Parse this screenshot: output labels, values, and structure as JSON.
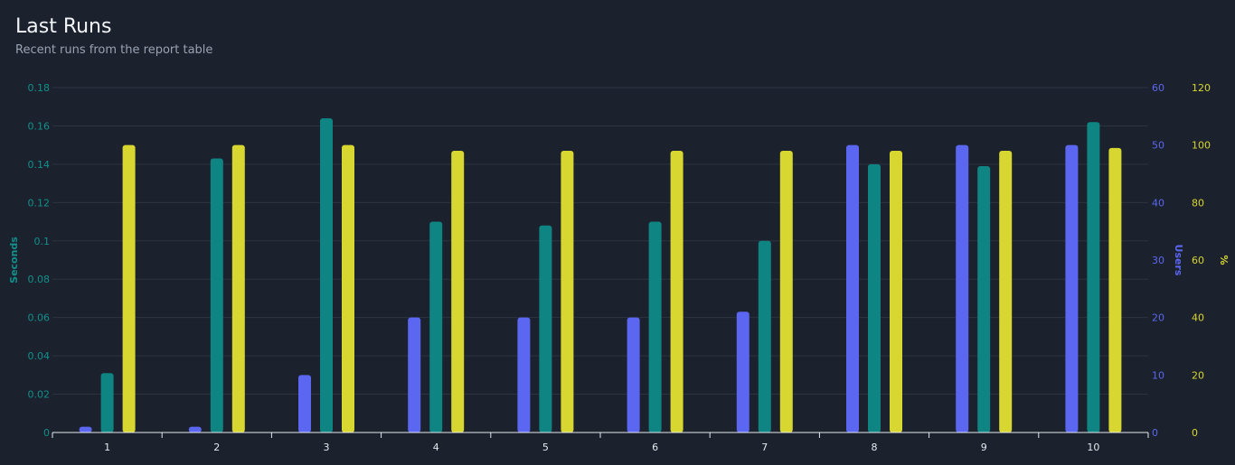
{
  "header": {
    "title": "Last Runs",
    "subtitle": "Recent runs from the report table"
  },
  "chart_data": {
    "type": "bar",
    "categories": [
      "1",
      "2",
      "3",
      "4",
      "5",
      "6",
      "7",
      "8",
      "9",
      "10"
    ],
    "series": [
      {
        "name": "Users",
        "axis": "users",
        "color": "#5b67f0",
        "values": [
          1,
          1,
          10,
          20,
          20,
          20,
          21,
          50,
          50,
          50
        ]
      },
      {
        "name": "Seconds",
        "axis": "seconds",
        "color": "#0e8583",
        "values": [
          0.031,
          0.143,
          0.164,
          0.11,
          0.108,
          0.11,
          0.1,
          0.14,
          0.139,
          0.162
        ]
      },
      {
        "name": "%",
        "axis": "percent",
        "color": "#d8d630",
        "values": [
          100,
          100,
          100,
          98,
          98,
          98,
          98,
          98,
          98,
          99
        ]
      }
    ],
    "axes": {
      "seconds": {
        "label": "Seconds",
        "color": "#11908c",
        "min": 0,
        "max": 0.18,
        "ticks": [
          "0",
          "0.02",
          "0.04",
          "0.06",
          "0.08",
          "0.1",
          "0.12",
          "0.14",
          "0.16",
          "0.18"
        ]
      },
      "users": {
        "label": "Users",
        "color": "#5b67f0",
        "min": 0,
        "max": 60,
        "ticks": [
          "0",
          "10",
          "20",
          "30",
          "40",
          "50",
          "60"
        ]
      },
      "percent": {
        "label": "%",
        "color": "#d8d630",
        "min": 0,
        "max": 120,
        "ticks": [
          "0",
          "20",
          "40",
          "60",
          "80",
          "100",
          "120"
        ]
      }
    },
    "grid": true
  }
}
